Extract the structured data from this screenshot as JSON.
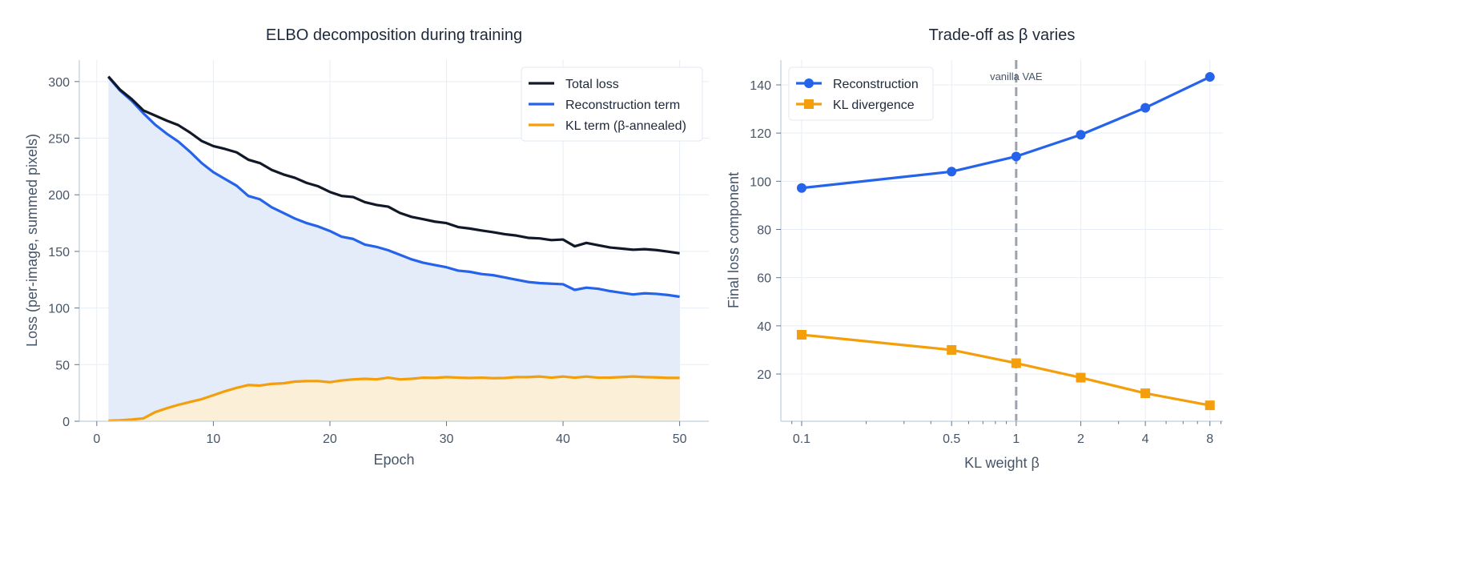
{
  "chart_data": [
    {
      "type": "line",
      "title": "ELBO decomposition during training",
      "xlabel": "Epoch",
      "ylabel": "Loss (per-image, summed pixels)",
      "xlim": [
        -1.5,
        52.5
      ],
      "ylim": [
        0,
        319
      ],
      "xticks": [
        0,
        10,
        20,
        30,
        40,
        50
      ],
      "yticks": [
        0,
        50,
        100,
        150,
        200,
        250,
        300
      ],
      "grid": true,
      "legend": "top-right",
      "x": [
        1,
        2,
        3,
        4,
        5,
        6,
        7,
        8,
        9,
        10,
        11,
        12,
        13,
        14,
        15,
        16,
        17,
        18,
        19,
        20,
        21,
        22,
        23,
        24,
        25,
        26,
        27,
        28,
        29,
        30,
        31,
        32,
        33,
        34,
        35,
        36,
        37,
        38,
        39,
        40,
        41,
        42,
        43,
        44,
        45,
        46,
        47,
        48,
        49,
        50
      ],
      "series": [
        {
          "name": "Total loss",
          "color": "#111827",
          "fill": false,
          "values": [
            304.5,
            292.8,
            284.5,
            274.5,
            270,
            265.5,
            261.5,
            255,
            247.5,
            243,
            240.5,
            237.5,
            231,
            228,
            222,
            218,
            215,
            210.5,
            207.5,
            202.5,
            199,
            198,
            193.5,
            191,
            189.5,
            184,
            180.5,
            178.5,
            176.3,
            175,
            171.5,
            170.2,
            168.5,
            167,
            165.2,
            164,
            162,
            161.5,
            160,
            160.5,
            154.5,
            157.5,
            155.5,
            153.5,
            152.5,
            151.5,
            152,
            151.2,
            149.8,
            148.3
          ]
        },
        {
          "name": "Reconstruction term",
          "color": "#2563eb",
          "fill": true,
          "fill_color": "#e4ecfa",
          "values": [
            304,
            292,
            283,
            272,
            262,
            254,
            247,
            238,
            228,
            220,
            214,
            208,
            199,
            196,
            189,
            184,
            179,
            175,
            172,
            168,
            163,
            161,
            156,
            154,
            151,
            147,
            143,
            140,
            138,
            136,
            133,
            132,
            130,
            129,
            127,
            125,
            123,
            122,
            121.5,
            121,
            116,
            118,
            117,
            115,
            113.5,
            112,
            113,
            112.5,
            111.5,
            110
          ]
        },
        {
          "name": "KL term (β-annealed)",
          "color": "#f59e0b",
          "fill": true,
          "fill_color": "#fcefd8",
          "values": [
            0.5,
            0.8,
            1.5,
            2.5,
            8,
            11.5,
            14.5,
            17,
            19.5,
            23,
            26.5,
            29.5,
            32,
            31.5,
            33,
            33.5,
            35,
            35.5,
            35.5,
            34.5,
            36,
            37,
            37.5,
            37,
            38.5,
            37,
            37.5,
            38.5,
            38.3,
            39,
            38.5,
            38.2,
            38.5,
            38,
            38.2,
            39,
            39,
            39.5,
            38.5,
            39.5,
            38.5,
            39.5,
            38.5,
            38.5,
            39,
            39.5,
            39,
            38.7,
            38.3,
            38.3
          ]
        }
      ]
    },
    {
      "type": "line",
      "title": "Trade-off as β varies",
      "xlabel": "KL weight β",
      "ylabel": "Final loss component",
      "xscale": "log",
      "xlim": [
        0.08,
        9.2
      ],
      "ylim": [
        0.4,
        150.3
      ],
      "xticks": [
        0.1,
        0.5,
        1,
        2,
        4,
        8
      ],
      "xticklabels": [
        "0.1",
        "0.5",
        "1",
        "2",
        "4",
        "8"
      ],
      "yticks": [
        20,
        40,
        60,
        80,
        100,
        120,
        140
      ],
      "grid": true,
      "legend": "top-left",
      "x": [
        0.1,
        0.5,
        1,
        2,
        4,
        8
      ],
      "series": [
        {
          "name": "Reconstruction",
          "color": "#2563eb",
          "marker": "circle",
          "values": [
            97.2,
            104,
            110.3,
            119.3,
            130.5,
            143.3
          ]
        },
        {
          "name": "KL divergence",
          "color": "#f59e0b",
          "marker": "square",
          "values": [
            36.3,
            30,
            24.5,
            18.5,
            12,
            7
          ]
        }
      ],
      "annotations": [
        {
          "type": "vline",
          "x": 1,
          "label": "vanilla VAE",
          "color": "#9ca3af",
          "style": "dashed"
        }
      ]
    }
  ]
}
